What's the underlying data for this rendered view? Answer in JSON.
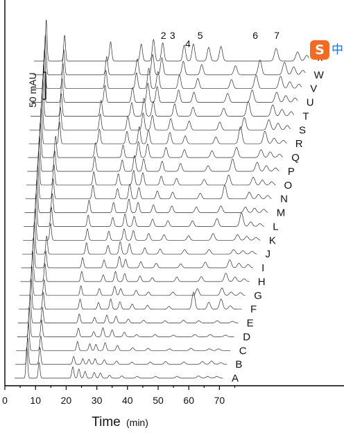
{
  "chart_data": {
    "type": "line",
    "title": "",
    "xlabel": "Time",
    "xlabel_unit": "(min)",
    "ylabel": "",
    "xlim": [
      0,
      80
    ],
    "x_ticks": [
      0,
      10,
      20,
      30,
      40,
      50,
      60,
      70
    ],
    "scale_bar": {
      "label": "50 mAU",
      "value": 50,
      "unit": "mAU"
    },
    "peak_labels": [
      {
        "label": "2",
        "time": 49
      },
      {
        "label": "3",
        "time": 52
      },
      {
        "label": "4",
        "time": 57
      },
      {
        "label": "5",
        "time": 61
      },
      {
        "label": "6",
        "time": 79
      },
      {
        "label": "7",
        "time": 86
      }
    ],
    "series": [
      {
        "name": "A",
        "peaks": [
          [
            4,
            55
          ],
          [
            8,
            28
          ],
          [
            19,
            20
          ],
          [
            21,
            16
          ],
          [
            23,
            12
          ],
          [
            26,
            10
          ],
          [
            28,
            9
          ],
          [
            31,
            5
          ],
          [
            35,
            4
          ],
          [
            40,
            3
          ],
          [
            46,
            3
          ],
          [
            53,
            3
          ],
          [
            60,
            4
          ],
          [
            63,
            3
          ],
          [
            66,
            3
          ]
        ]
      },
      {
        "name": "B",
        "peaks": [
          [
            4,
            48
          ],
          [
            8,
            30
          ],
          [
            19,
            14
          ],
          [
            22,
            10
          ],
          [
            24,
            9
          ],
          [
            26,
            10
          ],
          [
            29,
            8
          ],
          [
            33,
            6
          ],
          [
            38,
            4
          ],
          [
            44,
            4
          ],
          [
            49,
            5
          ],
          [
            55,
            4
          ],
          [
            61,
            5
          ],
          [
            64,
            6
          ],
          [
            67,
            3
          ]
        ]
      },
      {
        "name": "C",
        "peaks": [
          [
            4,
            50
          ],
          [
            8,
            26
          ],
          [
            20,
            16
          ],
          [
            24,
            12
          ],
          [
            26,
            11
          ],
          [
            29,
            14
          ],
          [
            33,
            9
          ],
          [
            38,
            5
          ],
          [
            43,
            4
          ],
          [
            50,
            3
          ],
          [
            57,
            4
          ],
          [
            63,
            3
          ],
          [
            66,
            3
          ]
        ]
      },
      {
        "name": "D",
        "peaks": [
          [
            4,
            52
          ],
          [
            8,
            30
          ],
          [
            20,
            15
          ],
          [
            25,
            9
          ],
          [
            28,
            16
          ],
          [
            31,
            12
          ],
          [
            35,
            8
          ],
          [
            39,
            4
          ],
          [
            45,
            4
          ],
          [
            51,
            3
          ],
          [
            58,
            4
          ],
          [
            63,
            4
          ],
          [
            68,
            3
          ]
        ]
      },
      {
        "name": "E",
        "peaks": [
          [
            4,
            50
          ],
          [
            8,
            28
          ],
          [
            20,
            16
          ],
          [
            25,
            10
          ],
          [
            29,
            14
          ],
          [
            32,
            12
          ],
          [
            36,
            7
          ],
          [
            41,
            5
          ],
          [
            48,
            4
          ],
          [
            54,
            5
          ],
          [
            59,
            4
          ],
          [
            65,
            4
          ],
          [
            70,
            3
          ]
        ]
      },
      {
        "name": "F",
        "peaks": [
          [
            4,
            55
          ],
          [
            8,
            30
          ],
          [
            20,
            18
          ],
          [
            26,
            12
          ],
          [
            30,
            18
          ],
          [
            33,
            13
          ],
          [
            37,
            9
          ],
          [
            42,
            7
          ],
          [
            49,
            5
          ],
          [
            57,
            30
          ],
          [
            62,
            12
          ],
          [
            66,
            18
          ],
          [
            69,
            6
          ]
        ]
      },
      {
        "name": "G",
        "peaks": [
          [
            4,
            52
          ],
          [
            8,
            28
          ],
          [
            20,
            17
          ],
          [
            26,
            12
          ],
          [
            31,
            16
          ],
          [
            33,
            12
          ],
          [
            38,
            9
          ],
          [
            42,
            6
          ],
          [
            50,
            6
          ],
          [
            58,
            12
          ],
          [
            66,
            13
          ],
          [
            69,
            6
          ],
          [
            72,
            5
          ]
        ]
      },
      {
        "name": "H",
        "peaks": [
          [
            4,
            55
          ],
          [
            8,
            32
          ],
          [
            20,
            18
          ],
          [
            27,
            12
          ],
          [
            31,
            18
          ],
          [
            34,
            14
          ],
          [
            39,
            10
          ],
          [
            43,
            7
          ],
          [
            51,
            8
          ],
          [
            59,
            9
          ],
          [
            67,
            15
          ],
          [
            70,
            8
          ],
          [
            73,
            5
          ]
        ]
      },
      {
        "name": "I",
        "peaks": [
          [
            4,
            55
          ],
          [
            8,
            30
          ],
          [
            20,
            18
          ],
          [
            27,
            14
          ],
          [
            32,
            20
          ],
          [
            34,
            15
          ],
          [
            39,
            11
          ],
          [
            44,
            8
          ],
          [
            52,
            7
          ],
          [
            60,
            10
          ],
          [
            68,
            14
          ],
          [
            71,
            8
          ],
          [
            74,
            6
          ]
        ]
      },
      {
        "name": "J",
        "peaks": [
          [
            4,
            58
          ],
          [
            8,
            32
          ],
          [
            21,
            20
          ],
          [
            28,
            15
          ],
          [
            32,
            22
          ],
          [
            35,
            18
          ],
          [
            40,
            11
          ],
          [
            45,
            9
          ],
          [
            53,
            8
          ],
          [
            61,
            8
          ],
          [
            69,
            8
          ],
          [
            72,
            6
          ],
          [
            75,
            5
          ]
        ]
      },
      {
        "name": "K",
        "peaks": [
          [
            4,
            58
          ],
          [
            9,
            30
          ],
          [
            21,
            20
          ],
          [
            28,
            16
          ],
          [
            33,
            20
          ],
          [
            36,
            17
          ],
          [
            41,
            12
          ],
          [
            46,
            10
          ],
          [
            54,
            8
          ],
          [
            62,
            12
          ],
          [
            70,
            10
          ],
          [
            73,
            7
          ],
          [
            76,
            5
          ]
        ]
      },
      {
        "name": "L",
        "peaks": [
          [
            4,
            60
          ],
          [
            9,
            34
          ],
          [
            21,
            20
          ],
          [
            29,
            16
          ],
          [
            33,
            22
          ],
          [
            36,
            18
          ],
          [
            42,
            13
          ],
          [
            47,
            10
          ],
          [
            55,
            10
          ],
          [
            63,
            14
          ],
          [
            71,
            24
          ],
          [
            74,
            8
          ],
          [
            77,
            5
          ]
        ]
      },
      {
        "name": "M",
        "peaks": [
          [
            4,
            60
          ],
          [
            9,
            34
          ],
          [
            21,
            22
          ],
          [
            29,
            18
          ],
          [
            34,
            24
          ],
          [
            37,
            18
          ],
          [
            42,
            14
          ],
          [
            48,
            12
          ],
          [
            56,
            10
          ],
          [
            64,
            12
          ],
          [
            72,
            10
          ],
          [
            75,
            8
          ],
          [
            78,
            6
          ]
        ]
      },
      {
        "name": "N",
        "peaks": [
          [
            4,
            62
          ],
          [
            9,
            36
          ],
          [
            22,
            24
          ],
          [
            30,
            18
          ],
          [
            34,
            26
          ],
          [
            37,
            20
          ],
          [
            43,
            14
          ],
          [
            48,
            12
          ],
          [
            57,
            10
          ],
          [
            65,
            24
          ],
          [
            73,
            12
          ],
          [
            76,
            8
          ],
          [
            79,
            6
          ]
        ]
      },
      {
        "name": "O",
        "peaks": [
          [
            4,
            62
          ],
          [
            9,
            36
          ],
          [
            22,
            24
          ],
          [
            30,
            20
          ],
          [
            35,
            26
          ],
          [
            38,
            22
          ],
          [
            44,
            16
          ],
          [
            49,
            12
          ],
          [
            58,
            10
          ],
          [
            66,
            18
          ],
          [
            74,
            14
          ],
          [
            77,
            9
          ],
          [
            80,
            6
          ]
        ]
      },
      {
        "name": "P",
        "peaks": [
          [
            4,
            64
          ],
          [
            9,
            36
          ],
          [
            22,
            26
          ],
          [
            31,
            20
          ],
          [
            35,
            28
          ],
          [
            38,
            22
          ],
          [
            44,
            18
          ],
          [
            50,
            14
          ],
          [
            59,
            10
          ],
          [
            67,
            22
          ],
          [
            75,
            16
          ],
          [
            78,
            10
          ],
          [
            81,
            6
          ]
        ]
      },
      {
        "name": "Q",
        "peaks": [
          [
            4,
            64
          ],
          [
            9,
            38
          ],
          [
            22,
            26
          ],
          [
            31,
            22
          ],
          [
            36,
            28
          ],
          [
            39,
            24
          ],
          [
            45,
            18
          ],
          [
            51,
            14
          ],
          [
            60,
            12
          ],
          [
            68,
            18
          ],
          [
            76,
            14
          ],
          [
            79,
            10
          ],
          [
            82,
            6
          ]
        ]
      },
      {
        "name": "R",
        "peaks": [
          [
            4,
            66
          ],
          [
            10,
            38
          ],
          [
            23,
            26
          ],
          [
            32,
            22
          ],
          [
            36,
            30
          ],
          [
            39,
            24
          ],
          [
            46,
            20
          ],
          [
            51,
            14
          ],
          [
            61,
            12
          ],
          [
            69,
            30
          ],
          [
            77,
            22
          ],
          [
            80,
            10
          ],
          [
            83,
            6
          ]
        ]
      },
      {
        "name": "S",
        "peaks": [
          [
            4,
            66
          ],
          [
            10,
            40
          ],
          [
            23,
            28
          ],
          [
            32,
            24
          ],
          [
            37,
            30
          ],
          [
            40,
            26
          ],
          [
            46,
            20
          ],
          [
            52,
            16
          ],
          [
            62,
            14
          ],
          [
            70,
            22
          ],
          [
            78,
            18
          ],
          [
            81,
            12
          ],
          [
            84,
            8
          ]
        ]
      },
      {
        "name": "T",
        "peaks": [
          [
            4,
            68
          ],
          [
            10,
            40
          ],
          [
            23,
            28
          ],
          [
            33,
            24
          ],
          [
            37,
            32
          ],
          [
            40,
            26
          ],
          [
            47,
            22
          ],
          [
            53,
            16
          ],
          [
            63,
            14
          ],
          [
            71,
            26
          ],
          [
            79,
            20
          ],
          [
            82,
            12
          ],
          [
            85,
            8
          ]
        ]
      },
      {
        "name": "U",
        "peaks": [
          [
            4,
            70
          ],
          [
            10,
            42
          ],
          [
            24,
            30
          ],
          [
            33,
            26
          ],
          [
            38,
            34
          ],
          [
            41,
            28
          ],
          [
            48,
            22
          ],
          [
            53,
            18
          ],
          [
            64,
            16
          ],
          [
            72,
            22
          ],
          [
            80,
            18
          ],
          [
            83,
            12
          ],
          [
            86,
            8
          ]
        ]
      },
      {
        "name": "V",
        "peaks": [
          [
            4,
            72
          ],
          [
            10,
            44
          ],
          [
            24,
            32
          ],
          [
            34,
            28
          ],
          [
            38,
            36
          ],
          [
            41,
            30
          ],
          [
            48,
            24
          ],
          [
            54,
            18
          ],
          [
            65,
            16
          ],
          [
            73,
            24
          ],
          [
            81,
            22
          ],
          [
            84,
            12
          ],
          [
            87,
            8
          ]
        ]
      },
      {
        "name": "W",
        "peaks": [
          [
            4,
            72
          ],
          [
            10,
            44
          ],
          [
            24,
            32
          ],
          [
            34,
            28
          ],
          [
            39,
            36
          ],
          [
            42,
            30
          ],
          [
            49,
            24
          ],
          [
            55,
            18
          ],
          [
            66,
            16
          ],
          [
            74,
            26
          ],
          [
            82,
            22
          ],
          [
            85,
            14
          ],
          [
            88,
            8
          ]
        ]
      },
      {
        "name": "^",
        "peaks": [
          [
            4,
            74
          ],
          [
            10,
            46
          ],
          [
            25,
            34
          ],
          [
            35,
            30
          ],
          [
            39,
            38
          ],
          [
            42,
            32
          ],
          [
            49,
            28
          ],
          [
            52,
            30
          ],
          [
            57,
            24
          ],
          [
            61,
            26
          ],
          [
            79,
            22
          ],
          [
            86,
            16
          ],
          [
            89,
            10
          ]
        ]
      }
    ]
  },
  "ime_badge": {
    "logo": "S",
    "text": "中"
  }
}
